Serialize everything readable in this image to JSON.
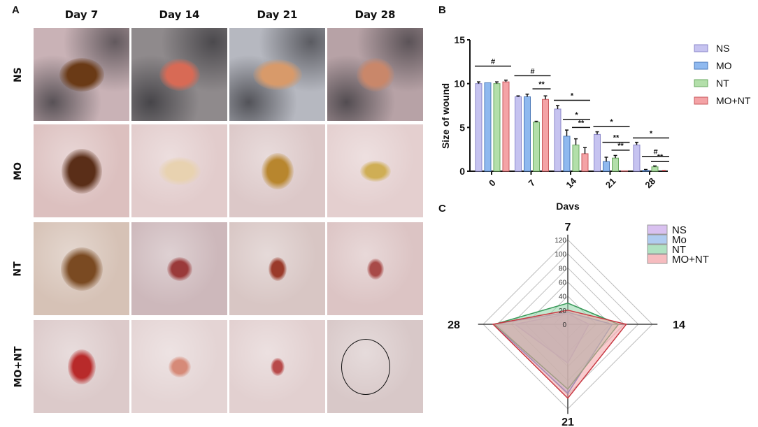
{
  "figure": {
    "panel_a": {
      "letter": "A",
      "columns": [
        "Day 7",
        "Day 14",
        "Day 21",
        "Day 28"
      ],
      "rows": [
        "NS",
        "MO",
        "NT",
        "MO+NT"
      ],
      "photos": [
        [
          {
            "desc": "dark fur, brown scab wound",
            "bg": "#c9b2b6",
            "wound": "#6a3a16"
          },
          {
            "desc": "grey fur, red wound",
            "bg": "#8f8a8c",
            "wound": "#d86a55"
          },
          {
            "desc": "grey fur, orange wound",
            "bg": "#b6b8c0",
            "wound": "#d89a6a"
          },
          {
            "desc": "pink skin, healing wound",
            "bg": "#b7a2a6",
            "wound": "#c9876a"
          }
        ],
        [
          {
            "desc": "pink skin, dark scab",
            "bg": "#dcc0bf",
            "wound": "#5a2e18"
          },
          {
            "desc": "pink skin, pale wound",
            "bg": "#e2cccc",
            "wound": "#e8d2b0"
          },
          {
            "desc": "pink skin, yellow scab",
            "bg": "#dcc8c8",
            "wound": "#b8862e"
          },
          {
            "desc": "pink skin, small scab",
            "bg": "#e4cfcf",
            "wound": "#cfae55"
          }
        ],
        [
          {
            "desc": "fur, brown scab",
            "bg": "#d6c2b6",
            "wound": "#7a4a22"
          },
          {
            "desc": "fur, red spot",
            "bg": "#cdb8bb",
            "wound": "#9a3a3a"
          },
          {
            "desc": "fur, red spot",
            "bg": "#d8c6c4",
            "wound": "#9a3a2a"
          },
          {
            "desc": "pink skin, red spot",
            "bg": "#dcc4c4",
            "wound": "#a84a48"
          }
        ],
        [
          {
            "desc": "pink skin, red wound",
            "bg": "#dccaca",
            "wound": "#b82a2a"
          },
          {
            "desc": "pink skin, faint wound",
            "bg": "#e4d4d4",
            "wound": "#d68a78"
          },
          {
            "desc": "pink skin, small red spot",
            "bg": "#e2d0d0",
            "wound": "#b84a4a"
          },
          {
            "desc": "healed skin with circle",
            "bg": "#d8c8c8",
            "wound": "none"
          }
        ]
      ]
    },
    "panel_b": {
      "letter": "B"
    },
    "panel_c": {
      "letter": "C"
    }
  },
  "chart_data": [
    {
      "type": "bar",
      "title": "",
      "xlabel": "Days",
      "ylabel": "Size of wound",
      "ylim": [
        0,
        15
      ],
      "yticks": [
        0,
        5,
        10,
        15
      ],
      "categories": [
        "0",
        "7",
        "14",
        "21",
        "28"
      ],
      "series": [
        {
          "name": "NS",
          "color": "#c6c3f0",
          "edge": "#8a86c9",
          "values": [
            10.0,
            8.5,
            7.1,
            4.2,
            3.0
          ],
          "errors": [
            0.2,
            0.1,
            0.4,
            0.3,
            0.3
          ]
        },
        {
          "name": "MO",
          "color": "#8fb9ef",
          "edge": "#4a78b8",
          "values": [
            10.1,
            8.5,
            4.0,
            1.1,
            0.1
          ],
          "errors": [
            0.0,
            0.3,
            0.7,
            0.5,
            0.1
          ]
        },
        {
          "name": "NT",
          "color": "#b3dfaa",
          "edge": "#6aa860",
          "values": [
            10.0,
            5.6,
            3.0,
            1.5,
            0.5
          ],
          "errors": [
            0.2,
            0.1,
            0.7,
            0.3,
            0.1
          ]
        },
        {
          "name": "MO+NT",
          "color": "#f4a3a6",
          "edge": "#c8595e",
          "values": [
            10.2,
            8.2,
            2.0,
            0.05,
            0.0
          ],
          "errors": [
            0.2,
            0.4,
            0.7,
            0.0,
            0.0
          ]
        }
      ],
      "significance": [
        {
          "group": "0",
          "label": "#",
          "from": "NS",
          "to": "MO+NT",
          "level": 12.0
        },
        {
          "group": "7",
          "label": "#",
          "from": "NS",
          "to": "MO+NT",
          "level": 10.9
        },
        {
          "group": "7",
          "label": "**",
          "from": "NT",
          "to": "MO+NT",
          "level": 9.4
        },
        {
          "group": "14",
          "label": "*",
          "from": "NS",
          "to": "MO+NT",
          "level": 8.1
        },
        {
          "group": "14",
          "label": "*",
          "from": "MO",
          "to": "MO+NT",
          "level": 5.9
        },
        {
          "group": "14",
          "label": "**",
          "from": "NT",
          "to": "MO+NT",
          "level": 5.0
        },
        {
          "group": "21",
          "label": "*",
          "from": "NS",
          "to": "MO+NT",
          "level": 5.1
        },
        {
          "group": "21",
          "label": "**",
          "from": "MO",
          "to": "MO+NT",
          "level": 3.3
        },
        {
          "group": "21",
          "label": "**",
          "from": "NT",
          "to": "MO+NT",
          "level": 2.4
        },
        {
          "group": "28",
          "label": "*",
          "from": "NS",
          "to": "MO+NT",
          "level": 3.8
        },
        {
          "group": "28",
          "label": "#",
          "from": "MO",
          "to": "MO+NT",
          "level": 1.7
        },
        {
          "group": "28",
          "label": "**",
          "from": "NT",
          "to": "MO+NT",
          "level": 1.1
        }
      ],
      "legend": {
        "placement": "right",
        "entries": [
          "NS",
          "MO",
          "NT",
          "MO+NT"
        ]
      }
    },
    {
      "type": "radar",
      "title": "",
      "axes": [
        "7",
        "14",
        "21",
        "28"
      ],
      "rlim": [
        0,
        120
      ],
      "rticks": [
        0,
        20,
        40,
        60,
        80,
        100,
        120
      ],
      "series": [
        {
          "name": "NS",
          "color": "#c9a6ea",
          "edge": "#9a6ad0",
          "values": [
            15,
            30,
            55,
            75
          ]
        },
        {
          "name": "Mo",
          "color": "#8fb6ea",
          "edge": "#3f6fc6",
          "values": [
            17,
            63,
            98,
            105
          ]
        },
        {
          "name": "NT",
          "color": "#8fd6a8",
          "edge": "#3a9a5a",
          "values": [
            30,
            72,
            92,
            104
          ]
        },
        {
          "name": "MO+NT",
          "color": "#f2a0a4",
          "edge": "#c83a44",
          "values": [
            20,
            83,
            105,
            106
          ]
        }
      ],
      "legend": {
        "placement": "top-right",
        "entries": [
          "NS",
          "Mo",
          "NT",
          "MO+NT"
        ]
      }
    }
  ]
}
